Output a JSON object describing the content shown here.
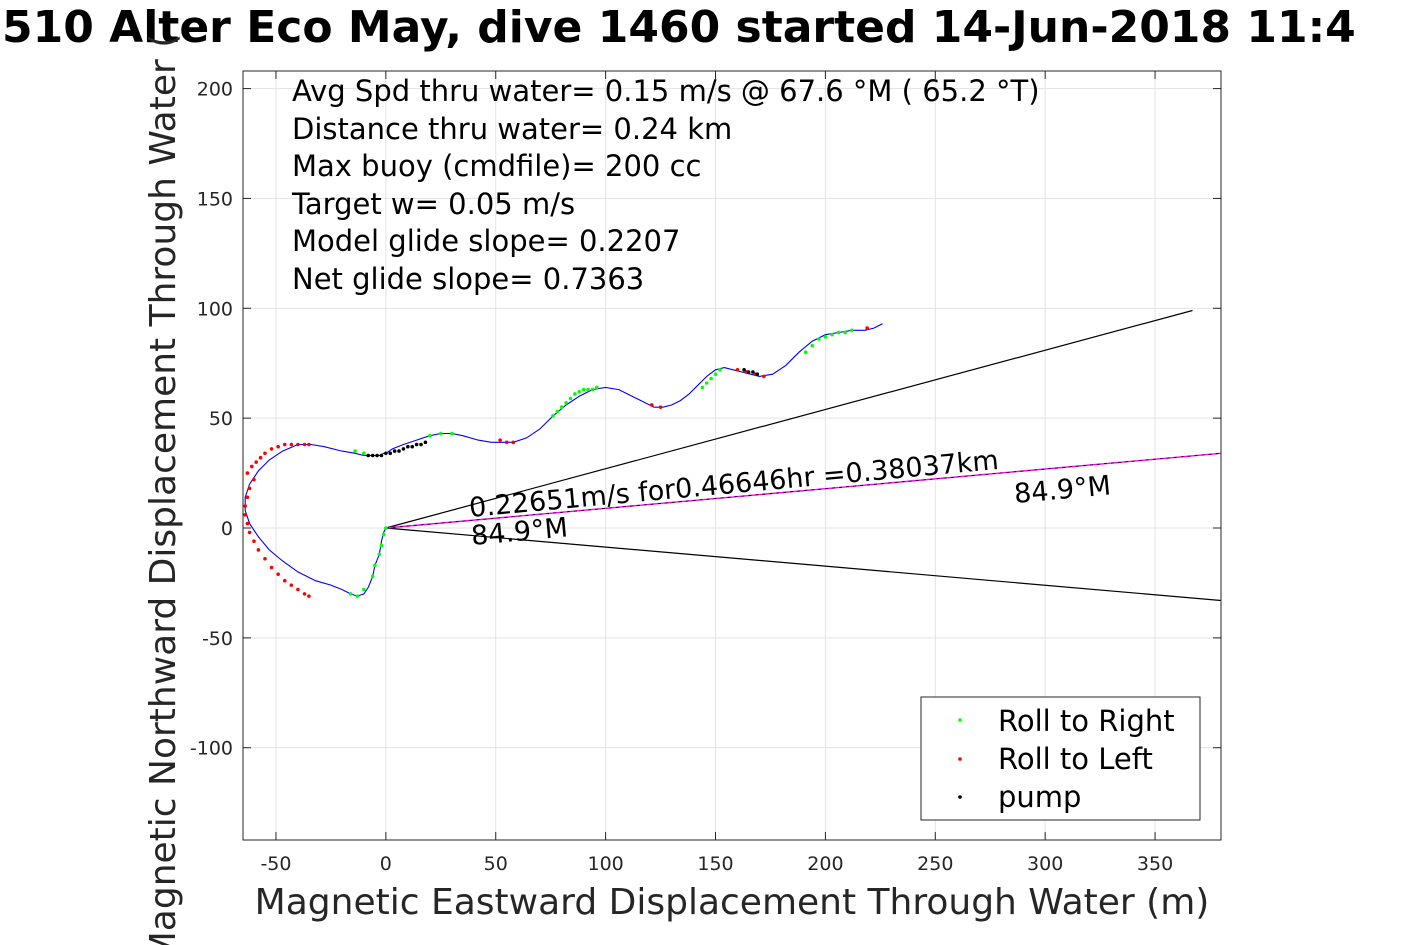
{
  "title": "510 Alter Eco May, dive 1460 started 14-Jun-2018 11:4",
  "chart_data": {
    "type": "scatter",
    "title": "510 Alter Eco May, dive 1460 started 14-Jun-2018 11:4",
    "xlabel": "Magnetic Eastward Displacement Through Water (m)",
    "ylabel": "Magnetic Northward Displacement Through Water (",
    "xlim": [
      -65,
      380
    ],
    "ylim": [
      -142,
      208
    ],
    "xticks": [
      -50,
      0,
      50,
      100,
      150,
      200,
      250,
      300,
      350
    ],
    "xtick_labels": [
      "-50",
      "0",
      "50",
      "100",
      "150",
      "200",
      "250",
      "300",
      "350"
    ],
    "yticks": [
      -100,
      -50,
      0,
      50,
      100,
      150,
      200
    ],
    "ytick_labels": [
      "-100",
      "-50",
      "0",
      "50",
      "100",
      "150",
      "200"
    ],
    "grid": true,
    "legend_position": "bottom-right",
    "annotations": [
      "Avg Spd thru water=  0.15 m/s @  67.6 °M ( 65.2 °T)",
      "Distance thru water=  0.24 km",
      "Max buoy (cmdfile)= 200 cc",
      "Target w= 0.05 m/s",
      "Model glide slope= 0.2207",
      "Net glide slope= 0.7363"
    ],
    "vector_label": "0.22651m/s for0.46646hr =0.38037km",
    "heading_label_end": "84.9°M",
    "heading_label_origin": "84.9°M",
    "heading_deg": 84.9,
    "wedge_lines": [
      {
        "x": [
          0,
          367
        ],
        "y": [
          0,
          99
        ]
      },
      {
        "x": [
          0,
          380
        ],
        "y": [
          0,
          -33
        ]
      }
    ],
    "heading_line": {
      "x": [
        0,
        380
      ],
      "y": [
        0,
        34
      ]
    },
    "colors": {
      "track": "#0000ff",
      "roll_right": "#00ff00",
      "roll_left": "#ff0000",
      "pump": "#000000",
      "heading_line": "#ff00ff",
      "wedge": "#000000"
    },
    "series": [
      {
        "name": "track",
        "x": [
          0,
          -1,
          -2,
          -3,
          -5,
          -6,
          -8,
          -10,
          -13,
          -16,
          -20,
          -25,
          -32,
          -40,
          -47,
          -53,
          -58,
          -62,
          -64,
          -64,
          -62,
          -58,
          -53,
          -47,
          -40,
          -34,
          -28,
          -20,
          -14,
          -10,
          -6,
          -3,
          -1,
          0,
          3,
          8,
          14,
          20,
          25,
          30,
          35,
          42,
          48,
          53,
          58,
          64,
          70,
          76,
          82,
          88,
          94,
          100,
          106,
          110,
          114,
          118,
          122,
          126,
          130,
          134,
          138,
          142,
          146,
          150,
          154,
          158,
          162,
          166,
          170,
          176,
          182,
          188,
          194,
          200,
          206,
          212,
          218,
          222,
          226
        ],
        "y": [
          0,
          -2,
          -6,
          -12,
          -17,
          -22,
          -27,
          -30,
          -31,
          -30,
          -28,
          -26,
          -24,
          -20,
          -15,
          -10,
          -4,
          2,
          8,
          14,
          20,
          26,
          31,
          35,
          38,
          38,
          37,
          35,
          34,
          33,
          33,
          33,
          34,
          34,
          36,
          38,
          40,
          42,
          43,
          43,
          42,
          40,
          39,
          39,
          39,
          41,
          45,
          51,
          56,
          60,
          63,
          64,
          63,
          61,
          59,
          57,
          55,
          55,
          56,
          58,
          61,
          65,
          69,
          72,
          73,
          72,
          71,
          70,
          69,
          70,
          74,
          80,
          85,
          88,
          89,
          90,
          90,
          91,
          93
        ]
      },
      {
        "name": "Roll to Right",
        "x": [
          0,
          -1,
          -2,
          -3,
          -5,
          -6,
          -10,
          -13,
          -16,
          -14,
          -10,
          20,
          25,
          30,
          76,
          78,
          80,
          82,
          84,
          86,
          88,
          90,
          92,
          94,
          96,
          144,
          146,
          148,
          150,
          152,
          191,
          194,
          197,
          200,
          203,
          206,
          209,
          212
        ],
        "y": [
          0,
          -3,
          -8,
          -12,
          -17,
          -22,
          -28,
          -31,
          -30,
          35,
          34,
          42,
          43,
          43,
          51,
          53,
          55,
          57,
          59,
          61,
          62,
          63,
          63,
          63,
          64,
          64,
          66,
          68,
          70,
          72,
          80,
          83,
          86,
          87,
          88,
          89,
          89,
          90
        ]
      },
      {
        "name": "Roll to Left",
        "x": [
          -60,
          -62,
          -63,
          -64,
          -64,
          -63,
          -62,
          -60,
          -58,
          -55,
          -52,
          -49,
          -46,
          -43,
          -40,
          -37,
          -35,
          -63,
          -61,
          -59,
          -57,
          -55,
          -52,
          -49,
          -46,
          -43,
          -40,
          -37,
          -35,
          52,
          55,
          58,
          121,
          125,
          160,
          164,
          168,
          172,
          219
        ],
        "y": [
          22,
          18,
          14,
          10,
          6,
          2,
          -2,
          -6,
          -10,
          -14,
          -18,
          -21,
          -24,
          -26,
          -28,
          -30,
          -31,
          25,
          28,
          30,
          32,
          34,
          36,
          37,
          38,
          38,
          38,
          38,
          38,
          40,
          39,
          39,
          56,
          55,
          72,
          71,
          70,
          69,
          91
        ]
      },
      {
        "name": "pump",
        "x": [
          -8,
          -6,
          -4,
          -2,
          0,
          2,
          4,
          6,
          8,
          10,
          12,
          14,
          16,
          18,
          163,
          165,
          167,
          169
        ],
        "y": [
          33,
          33,
          33,
          33,
          34,
          34,
          35,
          35,
          36,
          37,
          37,
          38,
          38,
          39,
          72,
          71,
          71,
          70
        ]
      }
    ]
  },
  "legend": {
    "items": [
      {
        "label": "Roll to Right",
        "color": "#00ff00"
      },
      {
        "label": "Roll to Left",
        "color": "#ff0000"
      },
      {
        "label": "pump",
        "color": "#000000"
      }
    ]
  }
}
